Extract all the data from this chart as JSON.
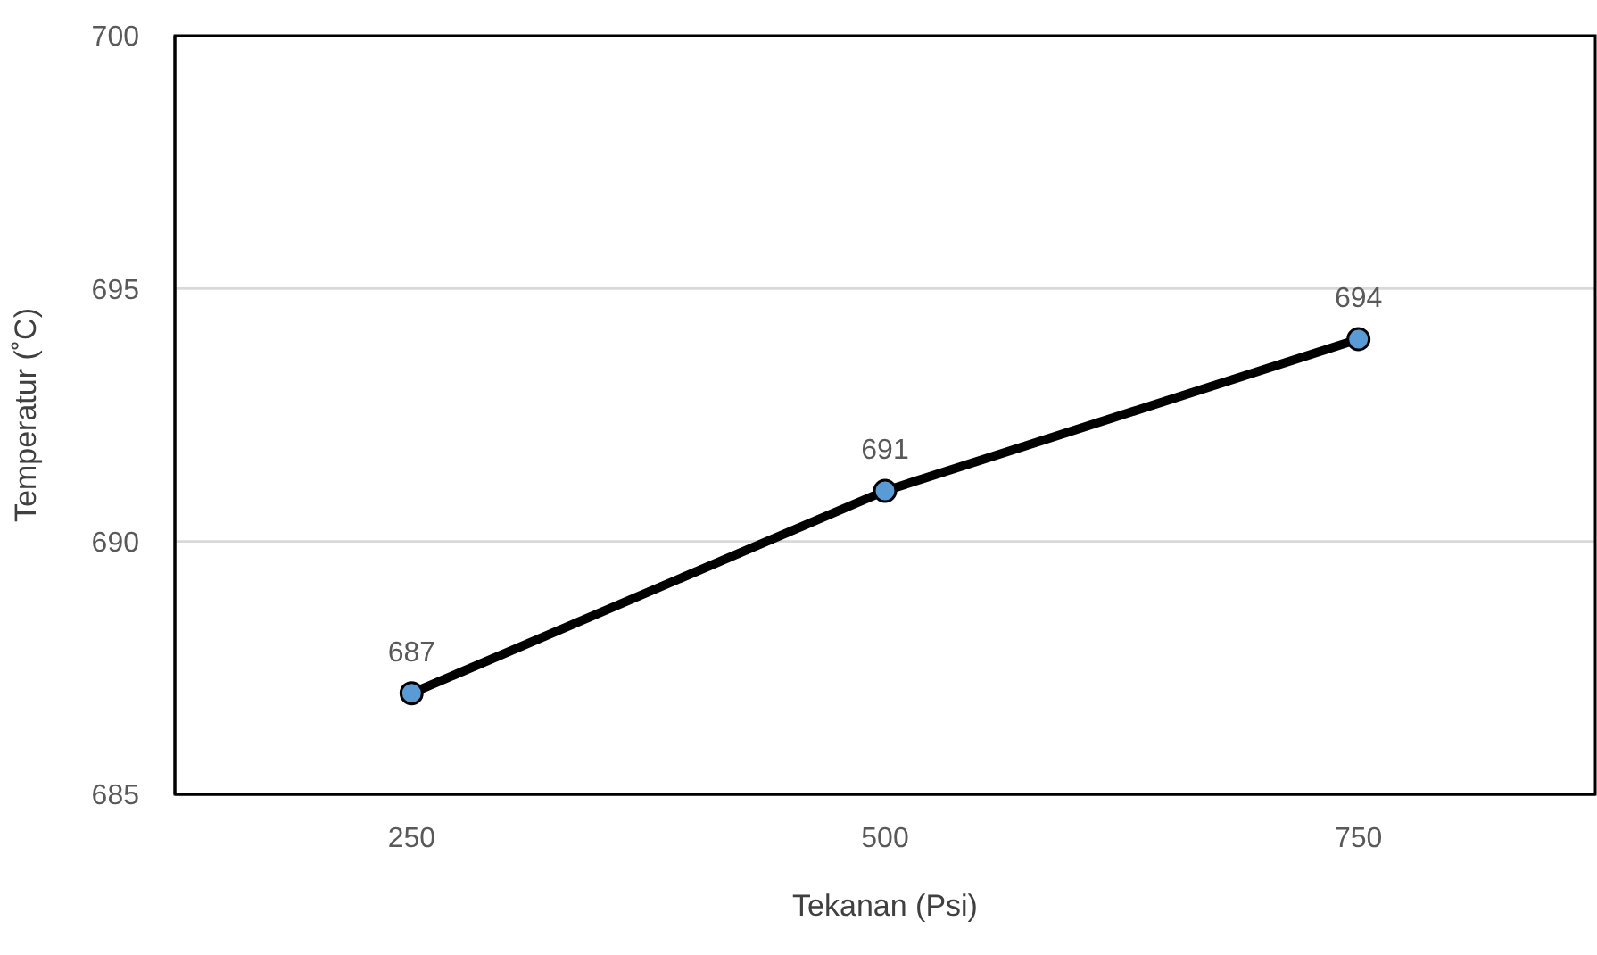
{
  "chart_data": {
    "type": "line",
    "xlabel": "Tekanan (Psi)",
    "ylabel": "Temperatur (˚C)",
    "categories": [
      "250",
      "500",
      "750"
    ],
    "series": [
      {
        "color": "#000000",
        "colors": [
          "#5b9bd5",
          "#5b9bd5",
          "#5b9bd5"
        ],
        "values": [
          687,
          691,
          694
        ]
      }
    ],
    "ylim": [
      685,
      700
    ],
    "yticks": [
      685,
      690,
      695,
      700
    ],
    "grid": "y",
    "marker": "circle",
    "line_style": "solid",
    "data_labels": true
  }
}
